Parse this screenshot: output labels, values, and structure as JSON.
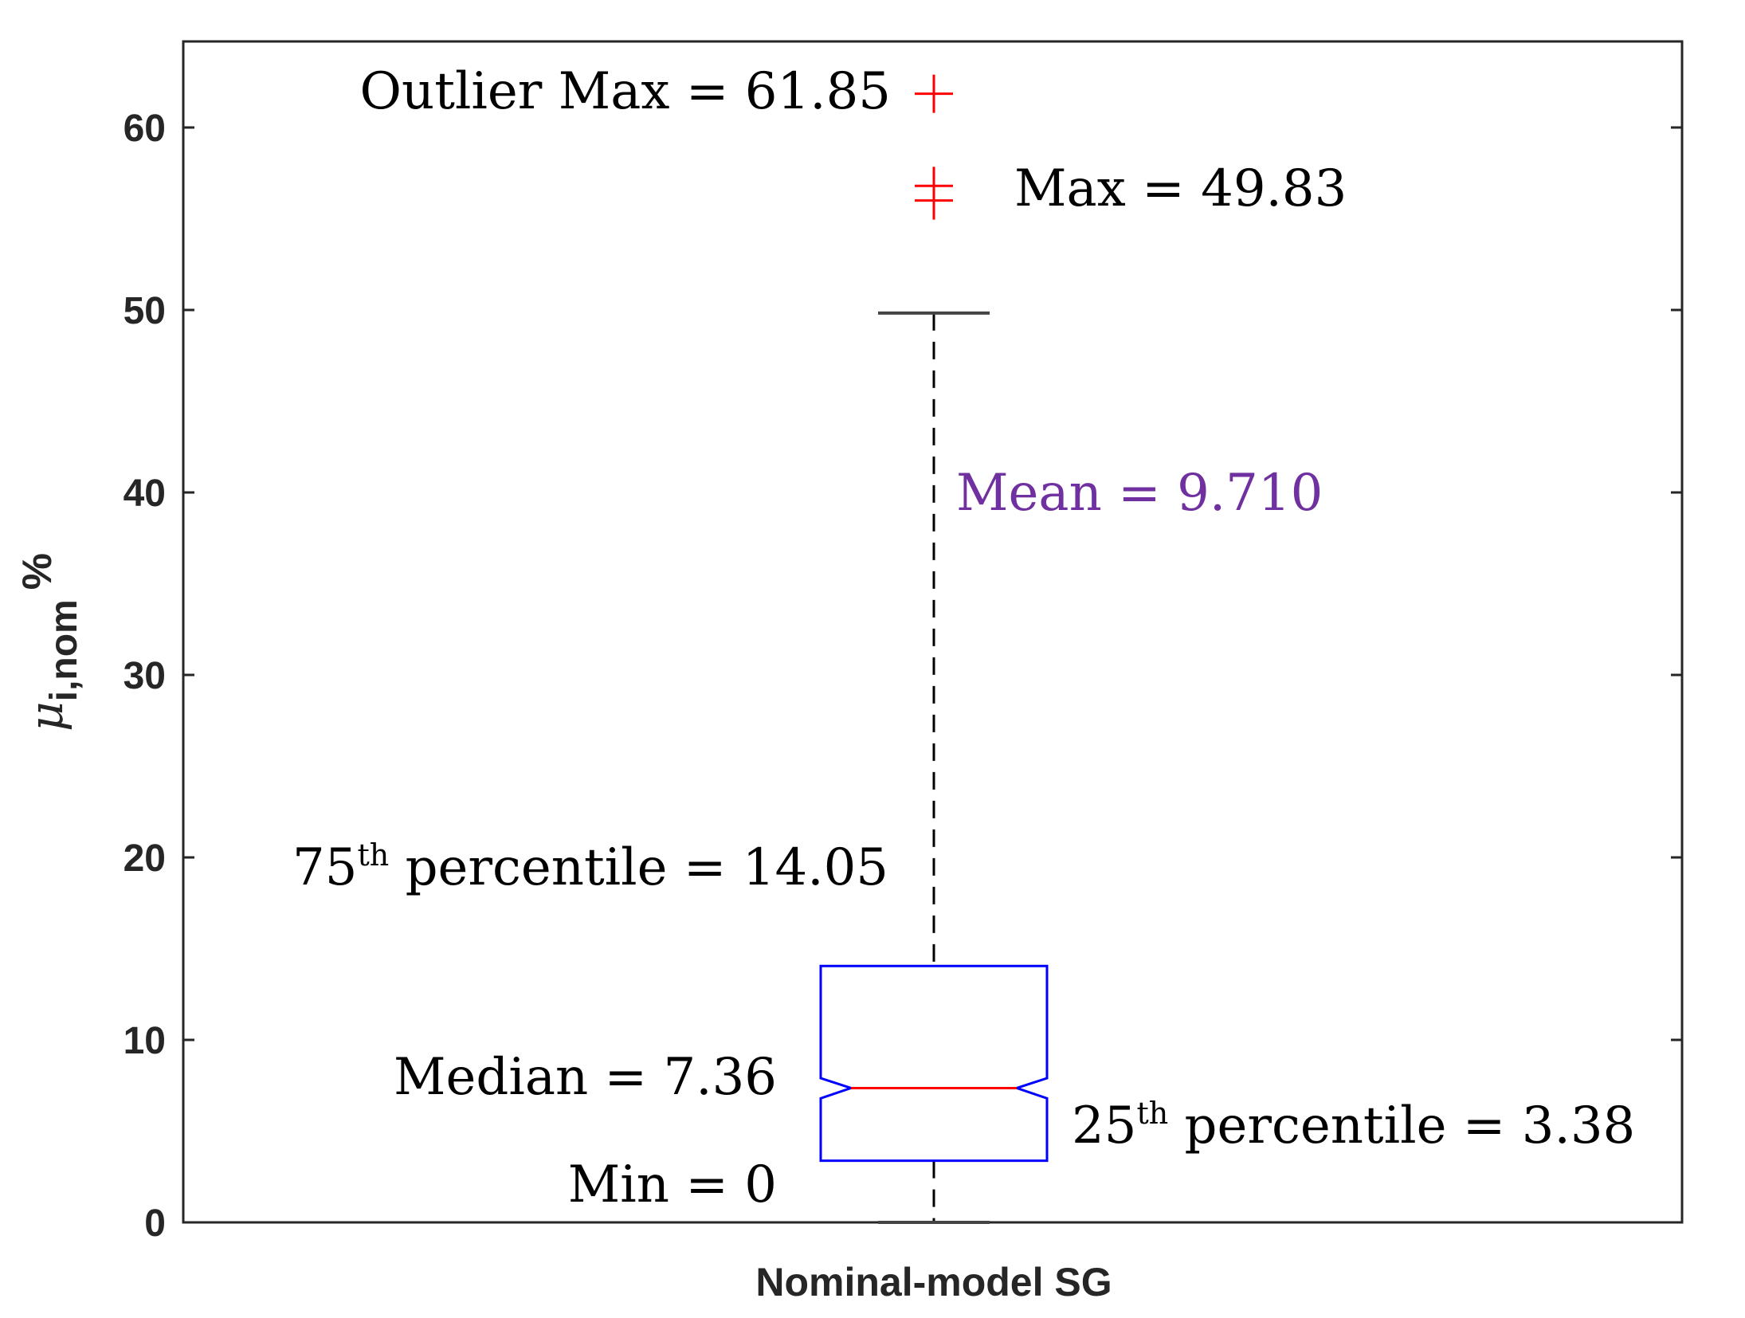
{
  "chart_data": {
    "type": "boxplot",
    "category": "Nominal-model SG",
    "ylim": [
      0,
      65
    ],
    "yticks": [
      "0",
      "10",
      "20",
      "30",
      "40",
      "50",
      "60"
    ],
    "ytick_values": [
      0,
      10,
      20,
      30,
      40,
      50,
      60
    ],
    "ylabel": {
      "symbol": "μ",
      "subscript": "i,nom",
      "unit": "%"
    },
    "box": {
      "q1": 3.38,
      "median": 7.36,
      "q3": 14.05,
      "whisker_low": 0,
      "whisker_high": 49.83,
      "notch_low": 6.8,
      "notch_high": 7.9
    },
    "outliers": [
      56.0,
      56.8,
      61.85
    ],
    "colors": {
      "box": "#0000ff",
      "median": "#ff0000",
      "outlier": "#ff0000",
      "whisker": "#000000",
      "mean_annotation": "#7030a0"
    },
    "annotations": {
      "outlier_max": "Outlier Max = 61.85",
      "max": "Max = 49.83",
      "mean": "Mean = 9.710",
      "p75_num": "75",
      "p75_sup": "th",
      "p75_rest": " percentile = 14.05",
      "median": "Median = 7.36",
      "p25_num": "25",
      "p25_sup": "th",
      "p25_rest": " percentile = 3.38",
      "min": "Min = 0"
    }
  }
}
